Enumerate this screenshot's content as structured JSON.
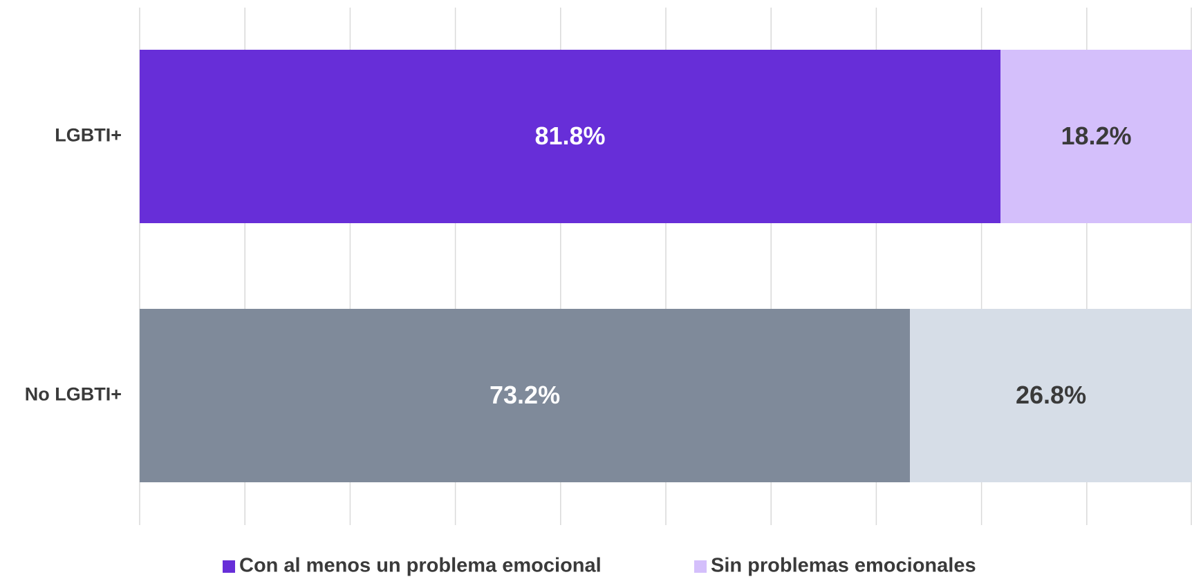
{
  "chart_data": {
    "type": "stacked_barh",
    "categories": [
      "LGBTI+",
      "No LGBTI+"
    ],
    "series": [
      {
        "name": "Con al menos un problema emocional",
        "color": "#672ed8",
        "colors": [
          "#672ed8",
          "#7f8a9a"
        ],
        "values": [
          81.8,
          73.2
        ],
        "value_labels": [
          "81.8%",
          "73.2%"
        ]
      },
      {
        "name": "Sin problemas emocionales",
        "color": "#d4bffb",
        "colors": [
          "#d4bffb",
          "#d6dde7"
        ],
        "values": [
          18.2,
          26.8
        ],
        "value_labels": [
          "18.2%",
          "26.8%"
        ]
      }
    ],
    "xlim": [
      0,
      100
    ],
    "xticks": [
      0,
      10,
      20,
      30,
      40,
      50,
      60,
      70,
      80,
      90,
      100
    ],
    "grid": true,
    "legend": "bottom"
  }
}
